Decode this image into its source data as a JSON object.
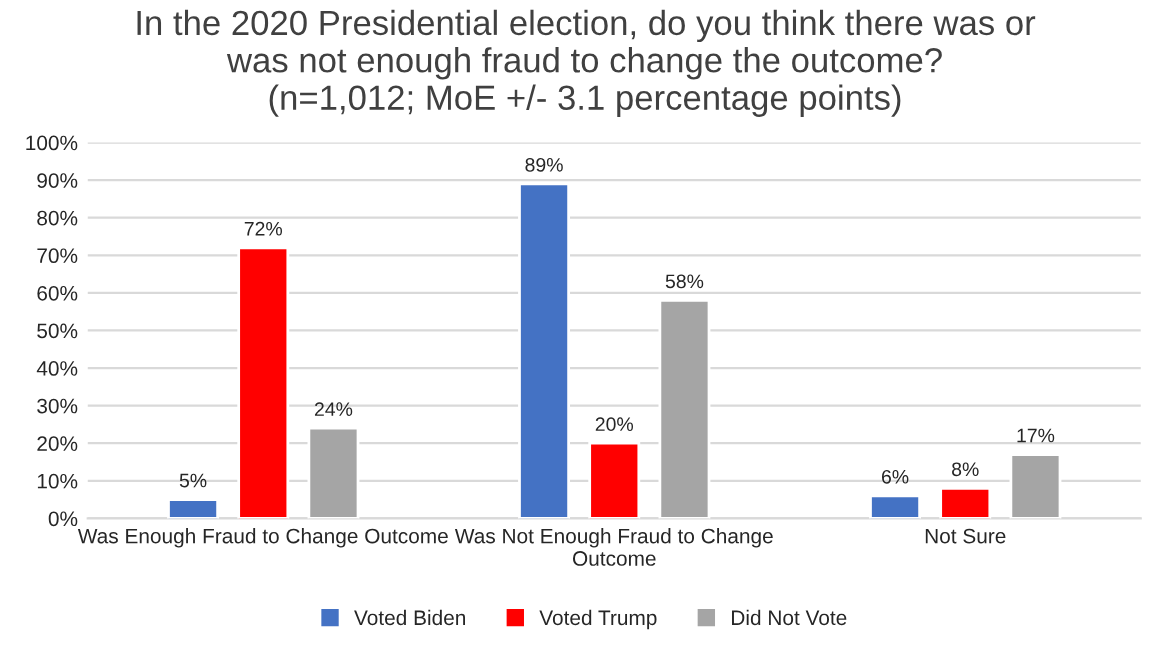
{
  "chart_data": {
    "type": "bar",
    "title": "In the 2020 Presidential election, do you think there was or\nwas not enough fraud to change the outcome?\n(n=1,012; MoE +/- 3.1 percentage points)",
    "categories": [
      "Was Enough Fraud to Change Outcome",
      "Was Not Enough Fraud to Change\nOutcome",
      "Not Sure"
    ],
    "series": [
      {
        "name": "Voted Biden",
        "color": "#4472c4",
        "values": [
          5,
          89,
          6
        ],
        "value_labels": [
          "5%",
          "89%",
          "6%"
        ]
      },
      {
        "name": "Voted Trump",
        "color": "#ff0000",
        "values": [
          72,
          20,
          8
        ],
        "value_labels": [
          "72%",
          "20%",
          "8%"
        ]
      },
      {
        "name": "Did Not Vote",
        "color": "#a5a5a5",
        "values": [
          24,
          58,
          17
        ],
        "value_labels": [
          "24%",
          "58%",
          "17%"
        ]
      }
    ],
    "ylim": [
      0,
      100
    ],
    "yticks": [
      {
        "value": 0,
        "label": "0%"
      },
      {
        "value": 10,
        "label": "10%"
      },
      {
        "value": 20,
        "label": "20%"
      },
      {
        "value": 30,
        "label": "30%"
      },
      {
        "value": 40,
        "label": "40%"
      },
      {
        "value": 50,
        "label": "50%"
      },
      {
        "value": 60,
        "label": "60%"
      },
      {
        "value": 70,
        "label": "70%"
      },
      {
        "value": 80,
        "label": "80%"
      },
      {
        "value": 90,
        "label": "90%"
      },
      {
        "value": 100,
        "label": "100%"
      }
    ],
    "grid": "y",
    "legend": "bottom"
  }
}
